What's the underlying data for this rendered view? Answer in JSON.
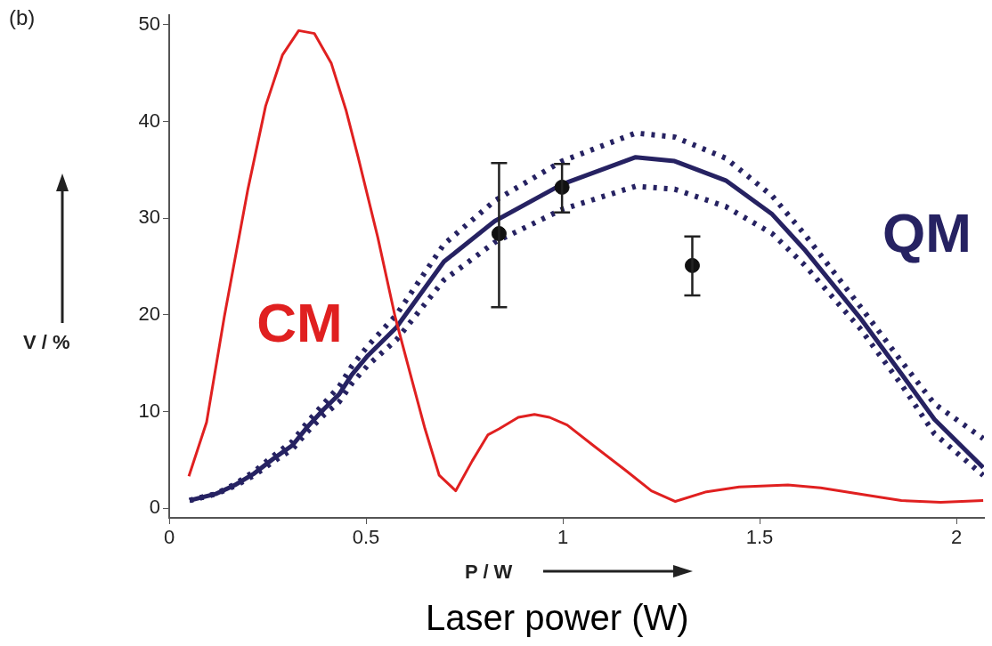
{
  "chart_data": {
    "type": "line",
    "xlabel": "P / W",
    "ylabel": "V / %",
    "annotations": [
      "(b)",
      "Laser power (W)"
    ],
    "xlim": [
      0,
      2.07
    ],
    "xticks": [
      0,
      0.5,
      1,
      1.5,
      2
    ],
    "ylim": [
      -1,
      51
    ],
    "yticks": [
      0,
      10,
      20,
      30,
      40,
      50
    ],
    "grid": false,
    "legend": false,
    "series": [
      {
        "name": "CM",
        "color": "#e02020",
        "marker": "none",
        "line_style": "solid",
        "x": [
          0.05,
          0.095,
          0.14,
          0.2,
          0.245,
          0.288,
          0.329,
          0.369,
          0.412,
          0.449,
          0.48,
          0.53,
          0.574,
          0.617,
          0.65,
          0.686,
          0.728,
          0.77,
          0.81,
          0.838,
          0.887,
          0.928,
          0.966,
          1.011,
          1.077,
          1.16,
          1.225,
          1.286,
          1.365,
          1.448,
          1.572,
          1.655,
          1.78,
          1.86,
          1.96,
          2.068
        ],
        "values": [
          3.3,
          8.9,
          19.8,
          33,
          41.6,
          46.9,
          49.4,
          49.1,
          46,
          41.2,
          36.3,
          28,
          19.8,
          13.2,
          8.2,
          3.4,
          1.8,
          4.9,
          7.6,
          8.2,
          9.4,
          9.7,
          9.4,
          8.6,
          6.5,
          3.9,
          1.8,
          0.7,
          1.7,
          2.2,
          2.4,
          2.1,
          1.3,
          0.8,
          0.6,
          0.8
        ]
      },
      {
        "name": "QM",
        "color": "#262262",
        "marker": "none",
        "line_style": "solid",
        "x": [
          0.052,
          0.12,
          0.167,
          0.216,
          0.264,
          0.313,
          0.351,
          0.392,
          0.432,
          0.464,
          0.505,
          0.577,
          0.698,
          0.827,
          0.998,
          1.185,
          1.284,
          1.414,
          1.532,
          1.613,
          1.755,
          1.86,
          1.944,
          2.068
        ],
        "values": [
          0.8,
          1.5,
          2.4,
          3.6,
          5.1,
          6.5,
          8.4,
          10.2,
          11.8,
          13.8,
          15.8,
          18.7,
          25.5,
          29.7,
          33.5,
          36.3,
          35.9,
          33.9,
          30.4,
          26.8,
          19.7,
          13.9,
          9.2,
          4.2
        ]
      },
      {
        "color": "#262262",
        "marker": "none",
        "line_style": "dotted",
        "x": [
          0.052,
          0.12,
          0.167,
          0.216,
          0.264,
          0.313,
          0.351,
          0.392,
          0.432,
          0.464,
          0.505,
          0.577,
          0.698,
          0.827,
          0.998,
          1.185,
          1.284,
          1.414,
          1.532,
          1.613,
          1.755,
          1.86,
          1.944,
          2.068
        ],
        "values": [
          0.8,
          1.5,
          2.5,
          3.8,
          5.4,
          6.9,
          8.9,
          10.8,
          12.6,
          14.7,
          16.8,
          20,
          27.3,
          31.8,
          35.9,
          38.8,
          38.4,
          36.2,
          32.3,
          28.4,
          20.9,
          15.2,
          10.8,
          7.2
        ]
      },
      {
        "color": "#262262",
        "marker": "none",
        "line_style": "dotted",
        "x": [
          0.052,
          0.12,
          0.167,
          0.216,
          0.264,
          0.313,
          0.351,
          0.392,
          0.432,
          0.464,
          0.505,
          0.577,
          0.698,
          0.827,
          0.998,
          1.185,
          1.284,
          1.414,
          1.532,
          1.613,
          1.755,
          1.86,
          1.944,
          2.068
        ],
        "values": [
          0.8,
          1.5,
          2.3,
          3.4,
          4.8,
          6.1,
          7.9,
          9.6,
          11,
          12.9,
          14.8,
          17.4,
          23.6,
          27.5,
          30.9,
          33.3,
          33,
          31.2,
          28.4,
          25.2,
          18.6,
          12.8,
          7.7,
          3.4
        ]
      },
      {
        "type": "scatter",
        "color": "#111111",
        "marker": "circle",
        "x": [
          0.838,
          0.998,
          1.329
        ],
        "values": [
          28.4,
          33.2,
          25.1
        ],
        "errors": [
          [
            20.8,
            35.7
          ],
          [
            30.6,
            35.6
          ],
          [
            22,
            28.1
          ]
        ]
      }
    ]
  }
}
